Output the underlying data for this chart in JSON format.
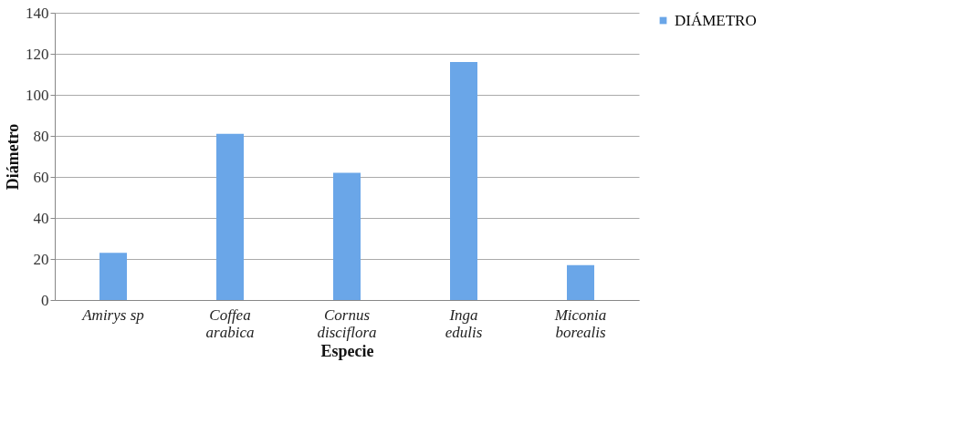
{
  "chart_data": {
    "type": "bar",
    "xlabel": "Especie",
    "ylabel": "Diámetro",
    "categories": [
      "Amirys sp",
      "Coffea arabica",
      "Cornus disciflora",
      "Inga edulis",
      "Miconia borealis"
    ],
    "series": [
      {
        "name": "DIÁMETRO",
        "color": "#6aa6e8",
        "values": [
          23,
          81,
          62,
          116,
          17
        ]
      }
    ],
    "ylim": [
      0,
      140
    ],
    "yticks": [
      0,
      20,
      40,
      60,
      80,
      100,
      120,
      140
    ],
    "grid": "y",
    "legend": "right"
  }
}
